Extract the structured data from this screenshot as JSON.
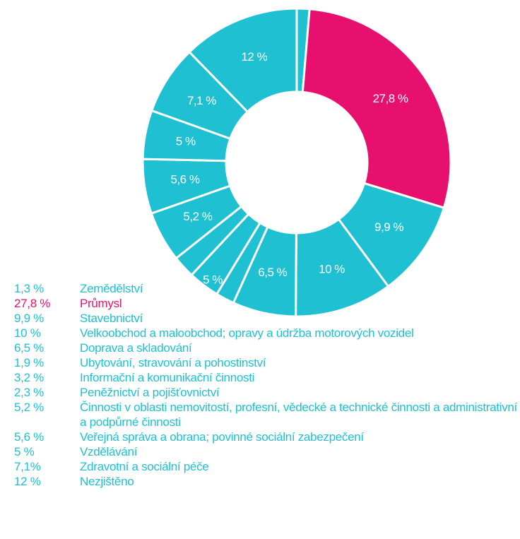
{
  "chart_data": {
    "type": "donut",
    "categories": [
      "Zemědělství",
      "Průmysl",
      "Stavebnictví",
      "Velkoobchod a maloobchod; opravy a údržba motorových vozidel",
      "Doprava a skladování",
      "Ubytování, stravování a pohostinství",
      "Informační a komunikační činnosti",
      "Peněžnictví a pojišťovnictví",
      "Činnosti v oblasti nemovitostí, profesní, vědecké a technické činnosti a administrativní a podpůrné činnosti",
      "Veřejná správa a obrana; povinné sociální zabezpečení",
      "Vzdělávání",
      "Zdravotní a sociální péče",
      "Nezjištěno"
    ],
    "values": [
      1.3,
      27.8,
      9.9,
      10,
      6.5,
      1.9,
      3.2,
      2.3,
      5.2,
      5.6,
      5,
      7.1,
      12
    ],
    "value_labels": [
      "1,3 %",
      "27,8 %",
      "9,9 %",
      "10 %",
      "6,5 %",
      "1,9 %",
      "3,2 %",
      "2,3 %",
      "5,2 %",
      "5,6 %",
      "5 %",
      "7,1%",
      "12 %"
    ],
    "slice_labels": [
      null,
      "27,8 %",
      "9,9 %",
      "10 %",
      "6,5 %",
      null,
      null,
      null,
      "5,2 %",
      "5,6 %",
      "5 %",
      "7,1 %",
      "12 %"
    ],
    "annotations": [
      "5 %"
    ],
    "colors": [
      "#1ec0d2",
      "#e8106e",
      "#1ec0d2",
      "#1ec0d2",
      "#1ec0d2",
      "#1ec0d2",
      "#1ec0d2",
      "#1ec0d2",
      "#1ec0d2",
      "#1ec0d2",
      "#1ec0d2",
      "#1ec0d2",
      "#1ec0d2"
    ]
  }
}
